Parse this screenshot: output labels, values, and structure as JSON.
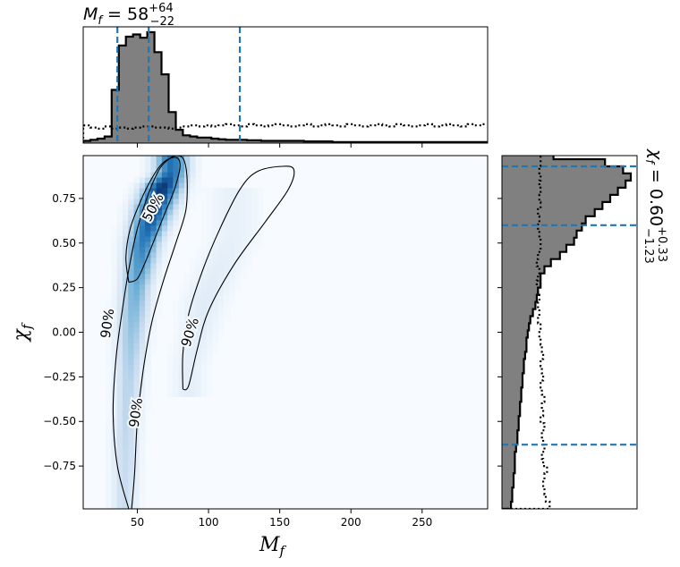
{
  "chart_data": [
    {
      "type": "heatmap",
      "panel": "joint",
      "xlabel": "M",
      "xlabel_sub": "f",
      "ylabel": "χ",
      "ylabel_sub": "f",
      "xlim": [
        12,
        296
      ],
      "ylim": [
        -0.99,
        0.99
      ],
      "xticks": [
        50,
        100,
        150,
        200,
        250
      ],
      "yticks": [
        0.75,
        0.5,
        0.25,
        0.0,
        -0.25,
        -0.5,
        -0.75
      ],
      "ytick_labels": [
        "0.75",
        "0.50",
        "0.25",
        "0.00",
        "−0.25",
        "−0.50",
        "−0.75"
      ],
      "colormap": [
        "#f7fbff",
        "#c6dbef",
        "#6baed6",
        "#2171b5",
        "#08306b"
      ],
      "density_ridge": [
        {
          "y": -0.95,
          "x": 41,
          "w": 6,
          "v": 0.22
        },
        {
          "y": -0.6,
          "x": 42,
          "w": 6,
          "v": 0.26
        },
        {
          "y": -0.25,
          "x": 44,
          "w": 6,
          "v": 0.3
        },
        {
          "y": 0.0,
          "x": 46,
          "w": 7,
          "v": 0.38
        },
        {
          "y": 0.25,
          "x": 49,
          "w": 7,
          "v": 0.5
        },
        {
          "y": 0.5,
          "x": 54,
          "w": 8,
          "v": 0.7
        },
        {
          "y": 0.7,
          "x": 62,
          "w": 9,
          "v": 0.92
        },
        {
          "y": 0.82,
          "x": 68,
          "w": 9,
          "v": 0.97
        },
        {
          "y": 0.9,
          "x": 74,
          "w": 8,
          "v": 0.75
        }
      ],
      "density_secondary": [
        {
          "y": -0.2,
          "x": 86,
          "w": 8,
          "v": 0.1
        },
        {
          "y": 0.2,
          "x": 98,
          "w": 10,
          "v": 0.12
        },
        {
          "y": 0.55,
          "x": 118,
          "w": 12,
          "v": 0.08
        }
      ],
      "contours": [
        {
          "label": "90%",
          "level": 0.9,
          "points": [
            [
              44,
              -0.99
            ],
            [
              36,
              -0.75
            ],
            [
              33,
              -0.45
            ],
            [
              35,
              -0.15
            ],
            [
              39,
              0.1
            ],
            [
              44,
              0.35
            ],
            [
              50,
              0.58
            ],
            [
              58,
              0.78
            ],
            [
              66,
              0.92
            ],
            [
              74,
              0.98
            ],
            [
              79,
              0.99
            ],
            [
              83,
              0.96
            ],
            [
              85,
              0.85
            ],
            [
              84,
              0.68
            ],
            [
              77,
              0.5
            ],
            [
              68,
              0.28
            ],
            [
              60,
              0.05
            ],
            [
              54,
              -0.22
            ],
            [
              50,
              -0.5
            ],
            [
              48,
              -0.8
            ],
            [
              46,
              -0.99
            ]
          ]
        },
        {
          "label": "50%",
          "level": 0.5,
          "points": [
            [
              44,
              0.28
            ],
            [
              42,
              0.42
            ],
            [
              45,
              0.58
            ],
            [
              52,
              0.73
            ],
            [
              60,
              0.86
            ],
            [
              68,
              0.95
            ],
            [
              77,
              0.98
            ],
            [
              80,
              0.93
            ],
            [
              76,
              0.8
            ],
            [
              69,
              0.66
            ],
            [
              62,
              0.52
            ],
            [
              56,
              0.4
            ],
            [
              50,
              0.3
            ],
            [
              44,
              0.28
            ]
          ]
        },
        {
          "label": "90%",
          "level": 0.9,
          "points": [
            [
              82,
              -0.32
            ],
            [
              82,
              -0.12
            ],
            [
              86,
              0.1
            ],
            [
              96,
              0.35
            ],
            [
              108,
              0.58
            ],
            [
              122,
              0.8
            ],
            [
              134,
              0.9
            ],
            [
              152,
              0.93
            ],
            [
              160,
              0.91
            ],
            [
              156,
              0.8
            ],
            [
              140,
              0.62
            ],
            [
              118,
              0.38
            ],
            [
              100,
              0.12
            ],
            [
              92,
              -0.1
            ],
            [
              86,
              -0.3
            ],
            [
              82,
              -0.32
            ]
          ]
        }
      ],
      "contour_labels": [
        {
          "text": "50%",
          "x": 61,
          "y": 0.7,
          "angle": -62
        },
        {
          "text": "90%",
          "x": 29,
          "y": 0.05,
          "angle": -82
        },
        {
          "text": "90%",
          "x": 49,
          "y": -0.45,
          "angle": -82
        },
        {
          "text": "90%",
          "x": 87,
          "y": 0.0,
          "angle": -72
        }
      ]
    },
    {
      "type": "bar",
      "panel": "top-marginal",
      "title_main": "M",
      "title_sub": "f",
      "title_value": " = 58",
      "title_upper": "+64",
      "title_lower": "−22",
      "xlim": [
        12,
        296
      ],
      "bin_edges": [
        12,
        17,
        22,
        27,
        32,
        37,
        42,
        47,
        52,
        57,
        62,
        67,
        72,
        77,
        82,
        87,
        92,
        97,
        102,
        107,
        112,
        117,
        122,
        127,
        132,
        137,
        142,
        147,
        152,
        157,
        162,
        167,
        172,
        177,
        182,
        187,
        192,
        197,
        202,
        207,
        212,
        217,
        222,
        227,
        232,
        237,
        242,
        247,
        252,
        257,
        262,
        267,
        272,
        277,
        282,
        287,
        292,
        296
      ],
      "posterior": [
        0.02,
        0.03,
        0.04,
        0.06,
        0.48,
        0.88,
        0.96,
        0.98,
        0.95,
        1.0,
        0.82,
        0.62,
        0.28,
        0.12,
        0.07,
        0.06,
        0.05,
        0.05,
        0.04,
        0.035,
        0.03,
        0.03,
        0.03,
        0.025,
        0.025,
        0.02,
        0.02,
        0.02,
        0.02,
        0.02,
        0.02,
        0.015,
        0.015,
        0.015,
        0.015,
        0.01,
        0.01,
        0.01,
        0.01,
        0.01,
        0.01,
        0.01,
        0.01,
        0.01,
        0.01,
        0.01,
        0.01,
        0.01,
        0.01,
        0.01,
        0.01,
        0.01,
        0.01,
        0.01,
        0.01,
        0.01,
        0.01
      ],
      "prior": [
        0.16,
        0.14,
        0.13,
        0.15,
        0.13,
        0.14,
        0.13,
        0.14,
        0.15,
        0.15,
        0.14,
        0.14,
        0.13,
        0.14,
        0.15,
        0.16,
        0.15,
        0.16,
        0.15,
        0.16,
        0.17,
        0.16,
        0.15,
        0.17,
        0.16,
        0.15,
        0.16,
        0.17,
        0.16,
        0.15,
        0.16,
        0.17,
        0.15,
        0.16,
        0.17,
        0.16,
        0.15,
        0.17,
        0.16,
        0.15,
        0.16,
        0.17,
        0.16,
        0.15,
        0.17,
        0.16,
        0.15,
        0.16,
        0.17,
        0.15,
        0.16,
        0.17,
        0.16,
        0.15,
        0.17,
        0.16,
        0.17
      ],
      "dashed_lines_x": [
        36,
        58,
        122
      ],
      "posterior_color": "#808080",
      "line_color": "#1f77b4"
    },
    {
      "type": "bar",
      "panel": "right-marginal",
      "title_main": "χ",
      "title_sub": "f",
      "title_value": " = 0.60",
      "title_upper": "+0.33",
      "title_lower": "−1.23",
      "ylim": [
        -0.99,
        0.99
      ],
      "bin_edges": [
        -0.99,
        -0.95,
        -0.91,
        -0.87,
        -0.83,
        -0.79,
        -0.75,
        -0.71,
        -0.67,
        -0.63,
        -0.59,
        -0.55,
        -0.51,
        -0.47,
        -0.43,
        -0.39,
        -0.35,
        -0.31,
        -0.27,
        -0.23,
        -0.19,
        -0.15,
        -0.11,
        -0.07,
        -0.03,
        0.01,
        0.05,
        0.09,
        0.13,
        0.17,
        0.21,
        0.25,
        0.29,
        0.33,
        0.37,
        0.41,
        0.45,
        0.49,
        0.53,
        0.57,
        0.61,
        0.65,
        0.69,
        0.73,
        0.77,
        0.81,
        0.85,
        0.89,
        0.93,
        0.97,
        0.99
      ],
      "posterior": [
        0.07,
        0.08,
        0.08,
        0.09,
        0.09,
        0.1,
        0.1,
        0.1,
        0.11,
        0.12,
        0.12,
        0.13,
        0.13,
        0.14,
        0.14,
        0.15,
        0.15,
        0.16,
        0.16,
        0.17,
        0.17,
        0.18,
        0.19,
        0.19,
        0.2,
        0.21,
        0.22,
        0.24,
        0.26,
        0.27,
        0.28,
        0.3,
        0.3,
        0.33,
        0.38,
        0.45,
        0.5,
        0.56,
        0.58,
        0.62,
        0.65,
        0.72,
        0.78,
        0.84,
        0.9,
        0.96,
        1.0,
        0.94,
        0.8,
        0.4
      ],
      "prior": [
        0.37,
        0.34,
        0.33,
        0.32,
        0.33,
        0.35,
        0.32,
        0.31,
        0.33,
        0.32,
        0.31,
        0.33,
        0.3,
        0.32,
        0.31,
        0.33,
        0.31,
        0.3,
        0.32,
        0.31,
        0.3,
        0.32,
        0.31,
        0.3,
        0.29,
        0.3,
        0.28,
        0.29,
        0.28,
        0.29,
        0.28,
        0.27,
        0.28,
        0.29,
        0.27,
        0.28,
        0.3,
        0.3,
        0.29,
        0.28,
        0.29,
        0.28,
        0.3,
        0.29,
        0.3,
        0.29,
        0.3,
        0.29,
        0.3,
        0.3
      ],
      "dashed_lines_y": [
        -0.63,
        0.6,
        0.93
      ],
      "posterior_color": "#808080",
      "line_color": "#1f77b4"
    }
  ]
}
